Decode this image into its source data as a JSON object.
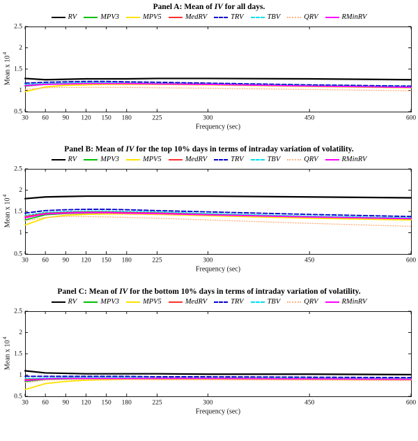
{
  "figure": {
    "background": "#ffffff",
    "axis_color": "#000000",
    "text_color": "#111111"
  },
  "panels": [
    {
      "title_prefix": "Panel A: Mean of ",
      "title_italic": "IV",
      "title_suffix": " for all days."
    },
    {
      "title_prefix": "Panel B: Mean of ",
      "title_italic": "IV",
      "title_suffix": " for the top 10% days in terms of intraday variation of volatility."
    },
    {
      "title_prefix": "Panel C: Mean of ",
      "title_italic": "IV",
      "title_suffix": " for the bottom 10% days in terms of intraday variation of volatility."
    }
  ],
  "chart_data": [
    {
      "type": "line",
      "title": "Panel A: Mean of IV for all days.",
      "xlabel": "Frequency (sec)",
      "ylabel": "Mean x 10^4",
      "x": [
        30,
        60,
        90,
        120,
        150,
        180,
        225,
        300,
        450,
        600
      ],
      "xticks": [
        30,
        60,
        90,
        120,
        150,
        180,
        225,
        300,
        450,
        600
      ],
      "xlim": [
        30,
        600
      ],
      "ylim": [
        0.5,
        2.5
      ],
      "yticks": [
        0.5,
        1,
        1.5,
        2,
        2.5
      ],
      "ytick_labels": [
        "0.5",
        "1",
        "1.5",
        "2",
        "2.5"
      ],
      "grid": false,
      "legend_position": "top",
      "series": [
        {
          "name": "RV",
          "color": "#000000",
          "style": "solid",
          "width": 2.2,
          "values": [
            1.28,
            1.25,
            1.26,
            1.27,
            1.27,
            1.27,
            1.28,
            1.28,
            1.27,
            1.25
          ]
        },
        {
          "name": "MPV3",
          "color": "#00c000",
          "style": "solid",
          "width": 1.6,
          "values": [
            1.1,
            1.14,
            1.15,
            1.16,
            1.16,
            1.16,
            1.15,
            1.14,
            1.1,
            1.07
          ]
        },
        {
          "name": "MPV5",
          "color": "#ffe100",
          "style": "solid",
          "width": 1.8,
          "values": [
            0.97,
            1.08,
            1.12,
            1.13,
            1.14,
            1.14,
            1.14,
            1.13,
            1.09,
            1.06
          ]
        },
        {
          "name": "MedRV",
          "color": "#ff3030",
          "style": "solid",
          "width": 1.6,
          "values": [
            1.12,
            1.15,
            1.16,
            1.17,
            1.17,
            1.17,
            1.16,
            1.15,
            1.11,
            1.08
          ]
        },
        {
          "name": "TRV",
          "color": "#0000cc",
          "style": "dashed",
          "width": 1.8,
          "values": [
            1.17,
            1.19,
            1.2,
            1.21,
            1.21,
            1.2,
            1.19,
            1.17,
            1.13,
            1.1
          ]
        },
        {
          "name": "TBV",
          "color": "#00dff0",
          "style": "dashed2",
          "width": 1.6,
          "values": [
            1.14,
            1.16,
            1.17,
            1.18,
            1.18,
            1.17,
            1.16,
            1.15,
            1.11,
            1.08
          ]
        },
        {
          "name": "QRV",
          "color": "#ffb380",
          "style": "dotted",
          "width": 1.4,
          "values": [
            1.02,
            1.06,
            1.07,
            1.07,
            1.07,
            1.07,
            1.06,
            1.05,
            1.02,
            0.99
          ]
        },
        {
          "name": "RMinRV",
          "color": "#ff00ff",
          "style": "solid",
          "width": 1.8,
          "values": [
            1.11,
            1.14,
            1.15,
            1.16,
            1.16,
            1.16,
            1.15,
            1.14,
            1.1,
            1.07
          ]
        }
      ]
    },
    {
      "type": "line",
      "title": "Panel B: Mean of IV for the top 10% days in terms of intraday variation of volatility.",
      "xlabel": "Frequency (sec)",
      "ylabel": "Mean x 10^4",
      "x": [
        30,
        60,
        90,
        120,
        150,
        180,
        225,
        300,
        450,
        600
      ],
      "xticks": [
        30,
        60,
        90,
        120,
        150,
        180,
        225,
        300,
        450,
        600
      ],
      "xlim": [
        30,
        600
      ],
      "ylim": [
        0.5,
        2.5
      ],
      "yticks": [
        0.5,
        1,
        1.5,
        2,
        2.5
      ],
      "ytick_labels": [
        "0.5",
        "1",
        "1.5",
        "2",
        "2.5"
      ],
      "grid": false,
      "legend_position": "top",
      "series": [
        {
          "name": "RV",
          "color": "#000000",
          "style": "solid",
          "width": 2.2,
          "values": [
            1.8,
            1.84,
            1.85,
            1.86,
            1.86,
            1.86,
            1.86,
            1.86,
            1.84,
            1.82
          ]
        },
        {
          "name": "MPV3",
          "color": "#00c000",
          "style": "solid",
          "width": 1.6,
          "values": [
            1.3,
            1.42,
            1.45,
            1.46,
            1.47,
            1.46,
            1.45,
            1.42,
            1.36,
            1.32
          ]
        },
        {
          "name": "MPV5",
          "color": "#ffe100",
          "style": "solid",
          "width": 1.8,
          "values": [
            1.18,
            1.35,
            1.41,
            1.43,
            1.44,
            1.44,
            1.43,
            1.4,
            1.34,
            1.3
          ]
        },
        {
          "name": "MedRV",
          "color": "#ff3030",
          "style": "solid",
          "width": 1.6,
          "values": [
            1.38,
            1.46,
            1.48,
            1.49,
            1.49,
            1.48,
            1.47,
            1.44,
            1.38,
            1.34
          ]
        },
        {
          "name": "TRV",
          "color": "#0000cc",
          "style": "dashed",
          "width": 1.8,
          "values": [
            1.46,
            1.52,
            1.54,
            1.55,
            1.55,
            1.54,
            1.52,
            1.49,
            1.43,
            1.38
          ]
        },
        {
          "name": "TBV",
          "color": "#00dff0",
          "style": "dashed2",
          "width": 1.6,
          "values": [
            1.41,
            1.48,
            1.5,
            1.51,
            1.51,
            1.5,
            1.49,
            1.45,
            1.39,
            1.35
          ]
        },
        {
          "name": "QRV",
          "color": "#ffb380",
          "style": "dotted",
          "width": 1.4,
          "values": [
            1.28,
            1.36,
            1.38,
            1.38,
            1.37,
            1.36,
            1.34,
            1.3,
            1.22,
            1.15
          ]
        },
        {
          "name": "RMinRV",
          "color": "#ff00ff",
          "style": "solid",
          "width": 1.8,
          "values": [
            1.35,
            1.44,
            1.46,
            1.47,
            1.47,
            1.46,
            1.45,
            1.42,
            1.37,
            1.33
          ]
        }
      ]
    },
    {
      "type": "line",
      "title": "Panel C: Mean of IV for the bottom 10% days in terms of intraday variation of volatility.",
      "xlabel": "Frequency (sec)",
      "ylabel": "Mean x 10^4",
      "x": [
        30,
        60,
        90,
        120,
        150,
        180,
        225,
        300,
        450,
        600
      ],
      "xticks": [
        30,
        60,
        90,
        120,
        150,
        180,
        225,
        300,
        450,
        600
      ],
      "xlim": [
        30,
        600
      ],
      "ylim": [
        0.5,
        2.5
      ],
      "yticks": [
        0.5,
        1,
        1.5,
        2,
        2.5
      ],
      "ytick_labels": [
        "0.5",
        "1",
        "1.5",
        "2",
        "2.5"
      ],
      "grid": false,
      "legend_position": "top",
      "series": [
        {
          "name": "RV",
          "color": "#000000",
          "style": "solid",
          "width": 2.2,
          "values": [
            1.1,
            1.05,
            1.04,
            1.03,
            1.03,
            1.03,
            1.03,
            1.02,
            1.02,
            1.01
          ]
        },
        {
          "name": "MPV3",
          "color": "#00c000",
          "style": "solid",
          "width": 1.6,
          "values": [
            0.85,
            0.9,
            0.91,
            0.92,
            0.92,
            0.92,
            0.92,
            0.92,
            0.91,
            0.9
          ]
        },
        {
          "name": "MPV5",
          "color": "#ffe100",
          "style": "solid",
          "width": 1.8,
          "values": [
            0.66,
            0.8,
            0.85,
            0.88,
            0.89,
            0.9,
            0.9,
            0.9,
            0.9,
            0.89
          ]
        },
        {
          "name": "MedRV",
          "color": "#ff3030",
          "style": "solid",
          "width": 1.6,
          "values": [
            0.9,
            0.92,
            0.93,
            0.93,
            0.93,
            0.93,
            0.93,
            0.93,
            0.92,
            0.91
          ]
        },
        {
          "name": "TRV",
          "color": "#0000cc",
          "style": "dashed",
          "width": 1.8,
          "values": [
            0.97,
            0.97,
            0.97,
            0.97,
            0.97,
            0.97,
            0.96,
            0.96,
            0.95,
            0.94
          ]
        },
        {
          "name": "TBV",
          "color": "#00dff0",
          "style": "dashed2",
          "width": 1.6,
          "values": [
            0.92,
            0.93,
            0.94,
            0.94,
            0.94,
            0.94,
            0.93,
            0.93,
            0.92,
            0.91
          ]
        },
        {
          "name": "QRV",
          "color": "#ffb380",
          "style": "dotted",
          "width": 1.4,
          "values": [
            0.82,
            0.88,
            0.89,
            0.9,
            0.9,
            0.9,
            0.89,
            0.89,
            0.88,
            0.87
          ]
        },
        {
          "name": "RMinRV",
          "color": "#ff00ff",
          "style": "solid",
          "width": 1.8,
          "values": [
            0.87,
            0.91,
            0.92,
            0.92,
            0.92,
            0.92,
            0.92,
            0.92,
            0.91,
            0.9
          ]
        }
      ]
    }
  ]
}
